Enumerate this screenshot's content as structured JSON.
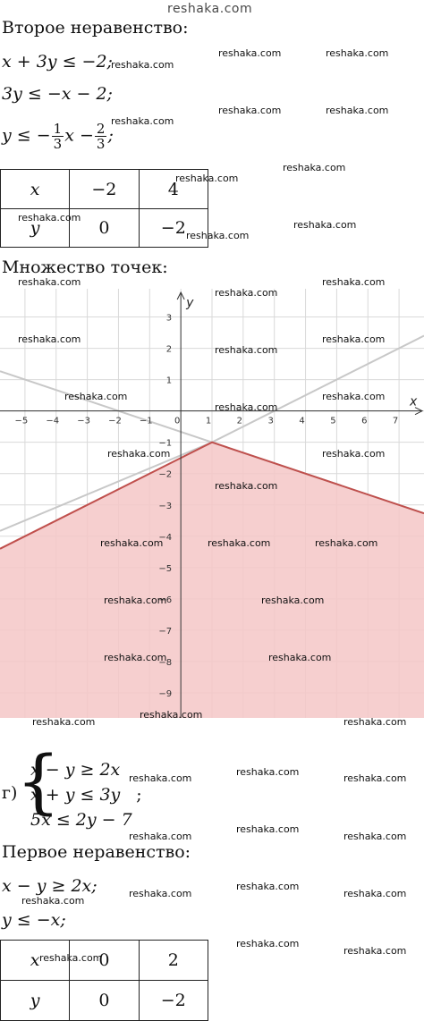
{
  "watermark_top": "reshaka.com",
  "watermark": "reshaka.com",
  "section1": {
    "heading": "Второе неравенство:",
    "line1": "x + 3y ≤ −2;",
    "line2": "3y ≤ −x − 2;",
    "line3_prefix": "y ≤ −",
    "frac1_num": "1",
    "frac1_den": "3",
    "line3_mid": "x −",
    "frac2_num": "2",
    "frac2_den": "3",
    "line3_suffix": ";"
  },
  "table1": {
    "rows": [
      {
        "label": "x",
        "values": [
          "−2",
          "4"
        ]
      },
      {
        "label": "y",
        "values": [
          "0",
          "−2"
        ]
      }
    ]
  },
  "section2": {
    "heading": "Множество точек:"
  },
  "chart_data": {
    "type": "line",
    "xlabel": "x",
    "ylabel": "y",
    "xlim": [
      -5.8,
      7.8
    ],
    "ylim": [
      -9.8,
      3.9
    ],
    "x_ticks": [
      "−5",
      "−4",
      "−3",
      "−2",
      "−1",
      "0",
      "1",
      "2",
      "3",
      "4",
      "5",
      "6",
      "7"
    ],
    "y_ticks": [
      "3",
      "2",
      "1",
      "−1",
      "−2",
      "−3",
      "−4",
      "−5",
      "−6",
      "−7",
      "−8",
      "−9"
    ],
    "grid": true,
    "series": [
      {
        "x": [
          -5.8,
          1,
          7.8
        ],
        "y": [
          1.27,
          -1,
          -3.27
        ],
        "color": "#c8c8c8"
      },
      {
        "x": [
          -5.8,
          1,
          7.8
        ],
        "y": [
          -3.83,
          -1,
          2.4
        ],
        "color": "#c8c8c8"
      },
      {
        "x": [
          -5.8,
          1,
          7.8
        ],
        "y": [
          -4.4,
          -1,
          -3.27
        ],
        "color": "#c0504d"
      }
    ],
    "shaded_region_color": "#f4c7c7"
  },
  "section3": {
    "label": "г)",
    "sys1": "x − y ≥ 2x",
    "sys2": "x + y ≤ 3y",
    "sys2_suffix": ";",
    "sys3": "5x ≤ 2y − 7",
    "heading": "Первое неравенство:",
    "line1": "x − y ≥ 2x;",
    "line2": "y ≤ −x;"
  },
  "table2": {
    "rows": [
      {
        "label": "x",
        "values": [
          "0",
          "2"
        ]
      },
      {
        "label": "y",
        "values": [
          "0",
          "−2"
        ]
      }
    ]
  }
}
